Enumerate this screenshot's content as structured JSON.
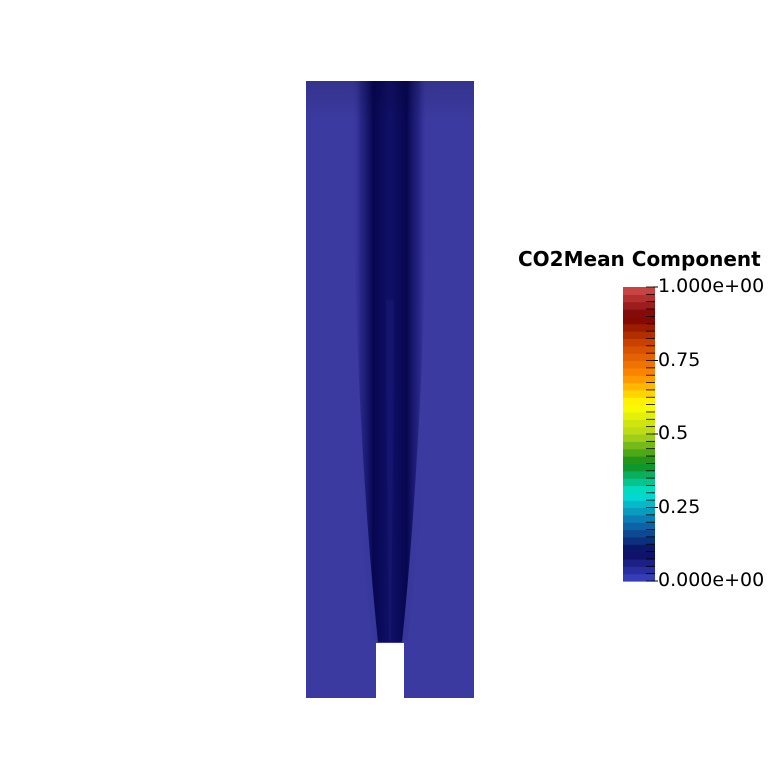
{
  "scalar_bar": {
    "title": "CO2Mean Component",
    "range": [
      0,
      1
    ],
    "colormap": [
      "#3b44c4",
      "#0a0a5e",
      "#0f6fb0",
      "#00e6d6",
      "#0f8c16",
      "#b4d61a",
      "#ffff00",
      "#ff8c00",
      "#d44a00",
      "#7a0000",
      "#d44c4c"
    ],
    "labels": [
      {
        "text": "1.000e+00",
        "value": 1.0
      },
      {
        "text": "0.75",
        "value": 0.75
      },
      {
        "text": "0.5",
        "value": 0.5
      },
      {
        "text": "0.25",
        "value": 0.25
      },
      {
        "text": "0.000e+00",
        "value": 0.0
      }
    ],
    "minor_tick_count": 40
  },
  "field_colors": {
    "ambient": "#3b3aa0",
    "core": "#050552"
  }
}
